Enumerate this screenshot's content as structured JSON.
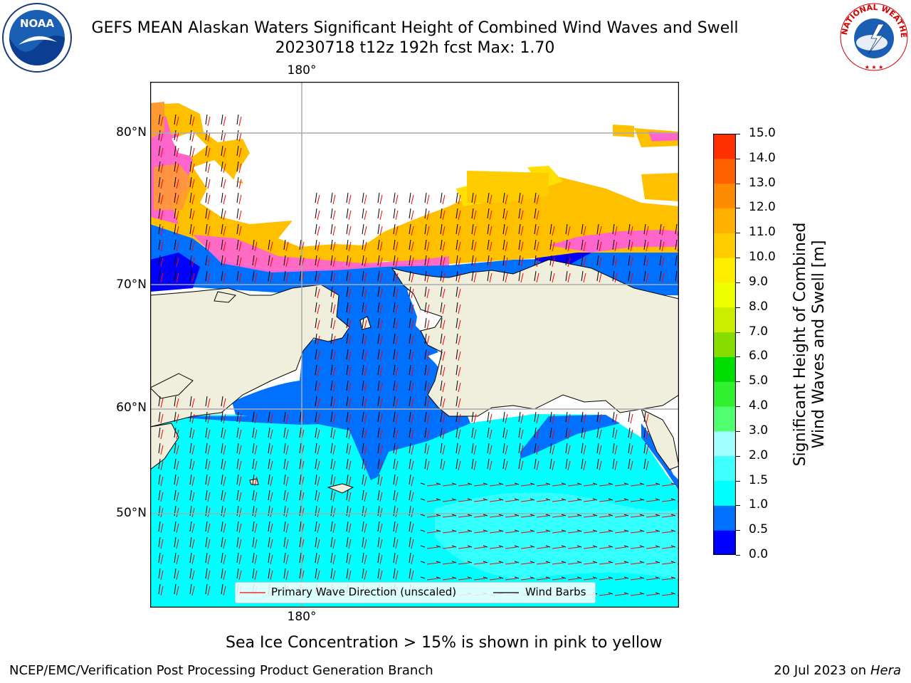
{
  "header": {
    "title_line1": "GEFS MEAN Alaskan Waters Significant Height of Combined Wind Waves and Swell",
    "title_line2": "20230718 t12z 192h fcst   Max: 1.70"
  },
  "logos": {
    "noaa_text": "NOAA",
    "nws_text": "NATIONAL WEATHER SERVICE"
  },
  "map": {
    "lon_label_top": "180°",
    "lon_label_bottom": "180°",
    "lat_labels": [
      "80°N",
      "70°N",
      "60°N",
      "50°N"
    ]
  },
  "legend": {
    "wave_label": "Primary Wave Direction (unscaled)",
    "wind_label": "Wind Barbs",
    "wave_color": "#ff0000",
    "wind_color": "#000000"
  },
  "colorbar": {
    "label_line1": "Significant Height of Combined",
    "label_line2": "Wind Waves and Swell [m]",
    "ticks": [
      "15.0",
      "14.0",
      "13.0",
      "12.0",
      "11.0",
      "10.0",
      "9.0",
      "8.0",
      "7.0",
      "6.0",
      "5.0",
      "4.0",
      "3.0",
      "2.0",
      "1.5",
      "1.0",
      "0.5",
      "0.0"
    ],
    "colors": [
      "#0000ff",
      "#0070ff",
      "#00ffff",
      "#40ffff",
      "#a0ffff",
      "#50ff70",
      "#30f030",
      "#00dd00",
      "#88dd00",
      "#ccee00",
      "#eeff00",
      "#ffee00",
      "#ffcc00",
      "#ffb000",
      "#ff8c00",
      "#ff6000",
      "#ff3000",
      "#ff0000"
    ]
  },
  "footer": {
    "ice_note": "Sea Ice Concentration > 15% is shown in pink to yellow",
    "branch": "NCEP/EMC/Verification Post Processing Product Generation Branch",
    "date": "20 Jul 2023 on ",
    "host": "Hera"
  }
}
